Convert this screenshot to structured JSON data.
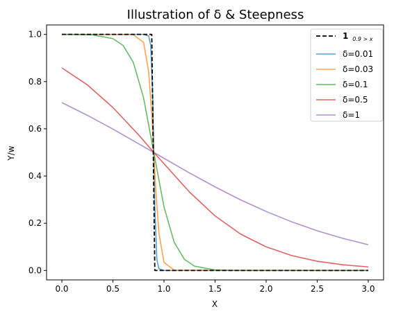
{
  "chart_data": {
    "type": "line",
    "title": "Illustration of δ & Steepness",
    "xlabel": "X",
    "ylabel": "Y/w",
    "xlim": [
      -0.15,
      3.15
    ],
    "ylim": [
      -0.04,
      1.04
    ],
    "xticks": [
      0.0,
      0.5,
      1.0,
      1.5,
      2.0,
      2.5,
      3.0
    ],
    "xtick_labels": [
      "0.0",
      "0.5",
      "1.0",
      "1.5",
      "2.0",
      "2.5",
      "3.0"
    ],
    "yticks": [
      0.0,
      0.2,
      0.4,
      0.6,
      0.8,
      1.0
    ],
    "ytick_labels": [
      "0.0",
      "0.2",
      "0.4",
      "0.6",
      "0.8",
      "1.0"
    ],
    "grid": false,
    "legend_position": "top-right",
    "legend": {
      "indicator_label": "1",
      "indicator_subscript": "0.9 > x",
      "delta_labels": [
        "δ=0.01",
        "δ=0.03",
        "δ=0.1",
        "δ=0.5",
        "δ=1"
      ]
    },
    "threshold": 0.9,
    "series": [
      {
        "name": "1 0.9>x",
        "style": "dashed",
        "color": "#000000",
        "x": [
          0.0,
          0.88,
          0.91,
          3.0
        ],
        "y": [
          1.0,
          1.0,
          0.0,
          0.0
        ]
      },
      {
        "name": "δ=0.01",
        "color": "#1f77b4",
        "x": [
          0.0,
          0.8,
          0.85,
          0.87,
          0.89,
          0.9,
          0.91,
          0.93,
          0.95,
          1.0,
          3.0
        ],
        "y": [
          1.0,
          1.0,
          0.993,
          0.953,
          0.731,
          0.5,
          0.269,
          0.047,
          0.007,
          0.0,
          0.0
        ]
      },
      {
        "name": "δ=0.03",
        "color": "#ff7f0e",
        "x": [
          0.0,
          0.7,
          0.8,
          0.85,
          0.88,
          0.9,
          0.92,
          0.95,
          1.0,
          1.1,
          3.0
        ],
        "y": [
          1.0,
          0.999,
          0.966,
          0.841,
          0.661,
          0.5,
          0.339,
          0.159,
          0.034,
          0.001,
          0.0
        ]
      },
      {
        "name": "δ=0.1",
        "color": "#2ca02c",
        "x": [
          0.0,
          0.3,
          0.5,
          0.6,
          0.7,
          0.8,
          0.9,
          1.0,
          1.1,
          1.2,
          1.3,
          1.5,
          1.7,
          2.0,
          3.0
        ],
        "y": [
          1.0,
          0.998,
          0.982,
          0.953,
          0.881,
          0.731,
          0.5,
          0.269,
          0.119,
          0.047,
          0.018,
          0.002,
          0.0,
          0.0,
          0.0
        ]
      },
      {
        "name": "δ=0.5",
        "color": "#d62728",
        "x": [
          0.0,
          0.25,
          0.5,
          0.75,
          0.9,
          1.25,
          1.5,
          1.75,
          2.0,
          2.25,
          2.5,
          2.75,
          3.0
        ],
        "y": [
          0.858,
          0.786,
          0.69,
          0.575,
          0.5,
          0.332,
          0.231,
          0.154,
          0.1,
          0.063,
          0.039,
          0.024,
          0.015
        ]
      },
      {
        "name": "δ=1",
        "color": "#9467bd",
        "x": [
          0.0,
          0.25,
          0.5,
          0.75,
          0.9,
          1.25,
          1.5,
          1.75,
          2.0,
          2.25,
          2.5,
          2.75,
          3.0
        ],
        "y": [
          0.711,
          0.657,
          0.599,
          0.537,
          0.5,
          0.413,
          0.354,
          0.299,
          0.25,
          0.206,
          0.168,
          0.136,
          0.109
        ]
      }
    ]
  }
}
